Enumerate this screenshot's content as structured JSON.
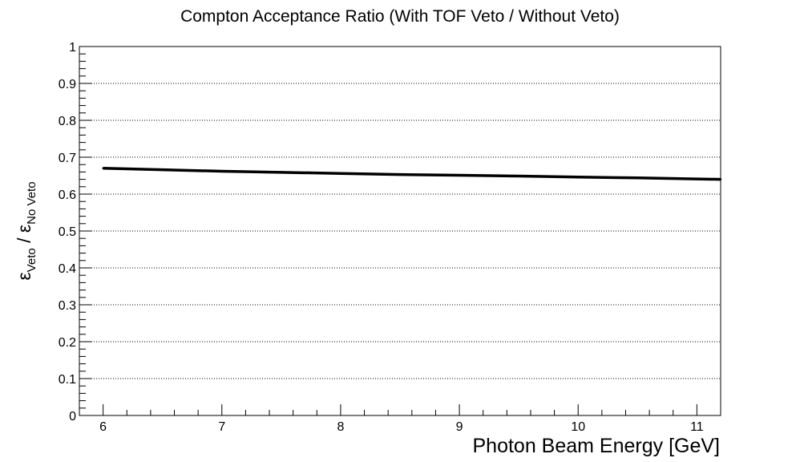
{
  "chart_data": {
    "type": "line",
    "title": "Compton Acceptance Ratio (With TOF Veto / Without Veto)",
    "xlabel": "Photon Beam Energy [GeV]",
    "ylabel": {
      "numerator_symbol": "ε",
      "numerator_sub": "Veto",
      "separator": " / ",
      "denominator_symbol": "ε",
      "denominator_sub": "No Veto"
    },
    "xlim": [
      5.8,
      11.2
    ],
    "ylim": [
      0,
      1
    ],
    "x_ticks": [
      "6",
      "7",
      "8",
      "9",
      "10",
      "11"
    ],
    "y_ticks": [
      "0",
      "0.1",
      "0.2",
      "0.3",
      "0.4",
      "0.5",
      "0.6",
      "0.7",
      "0.8",
      "0.9",
      "1"
    ],
    "grid": {
      "x": false,
      "y": true,
      "style": "dotted"
    },
    "series": [
      {
        "x": [
          6.0,
          6.5,
          7.0,
          7.5,
          8.0,
          8.5,
          9.0,
          9.5,
          10.0,
          10.5,
          11.0,
          11.2
        ],
        "y": [
          0.67,
          0.666,
          0.662,
          0.659,
          0.656,
          0.653,
          0.651,
          0.649,
          0.646,
          0.644,
          0.641,
          0.64
        ],
        "color": "#000000"
      }
    ]
  }
}
